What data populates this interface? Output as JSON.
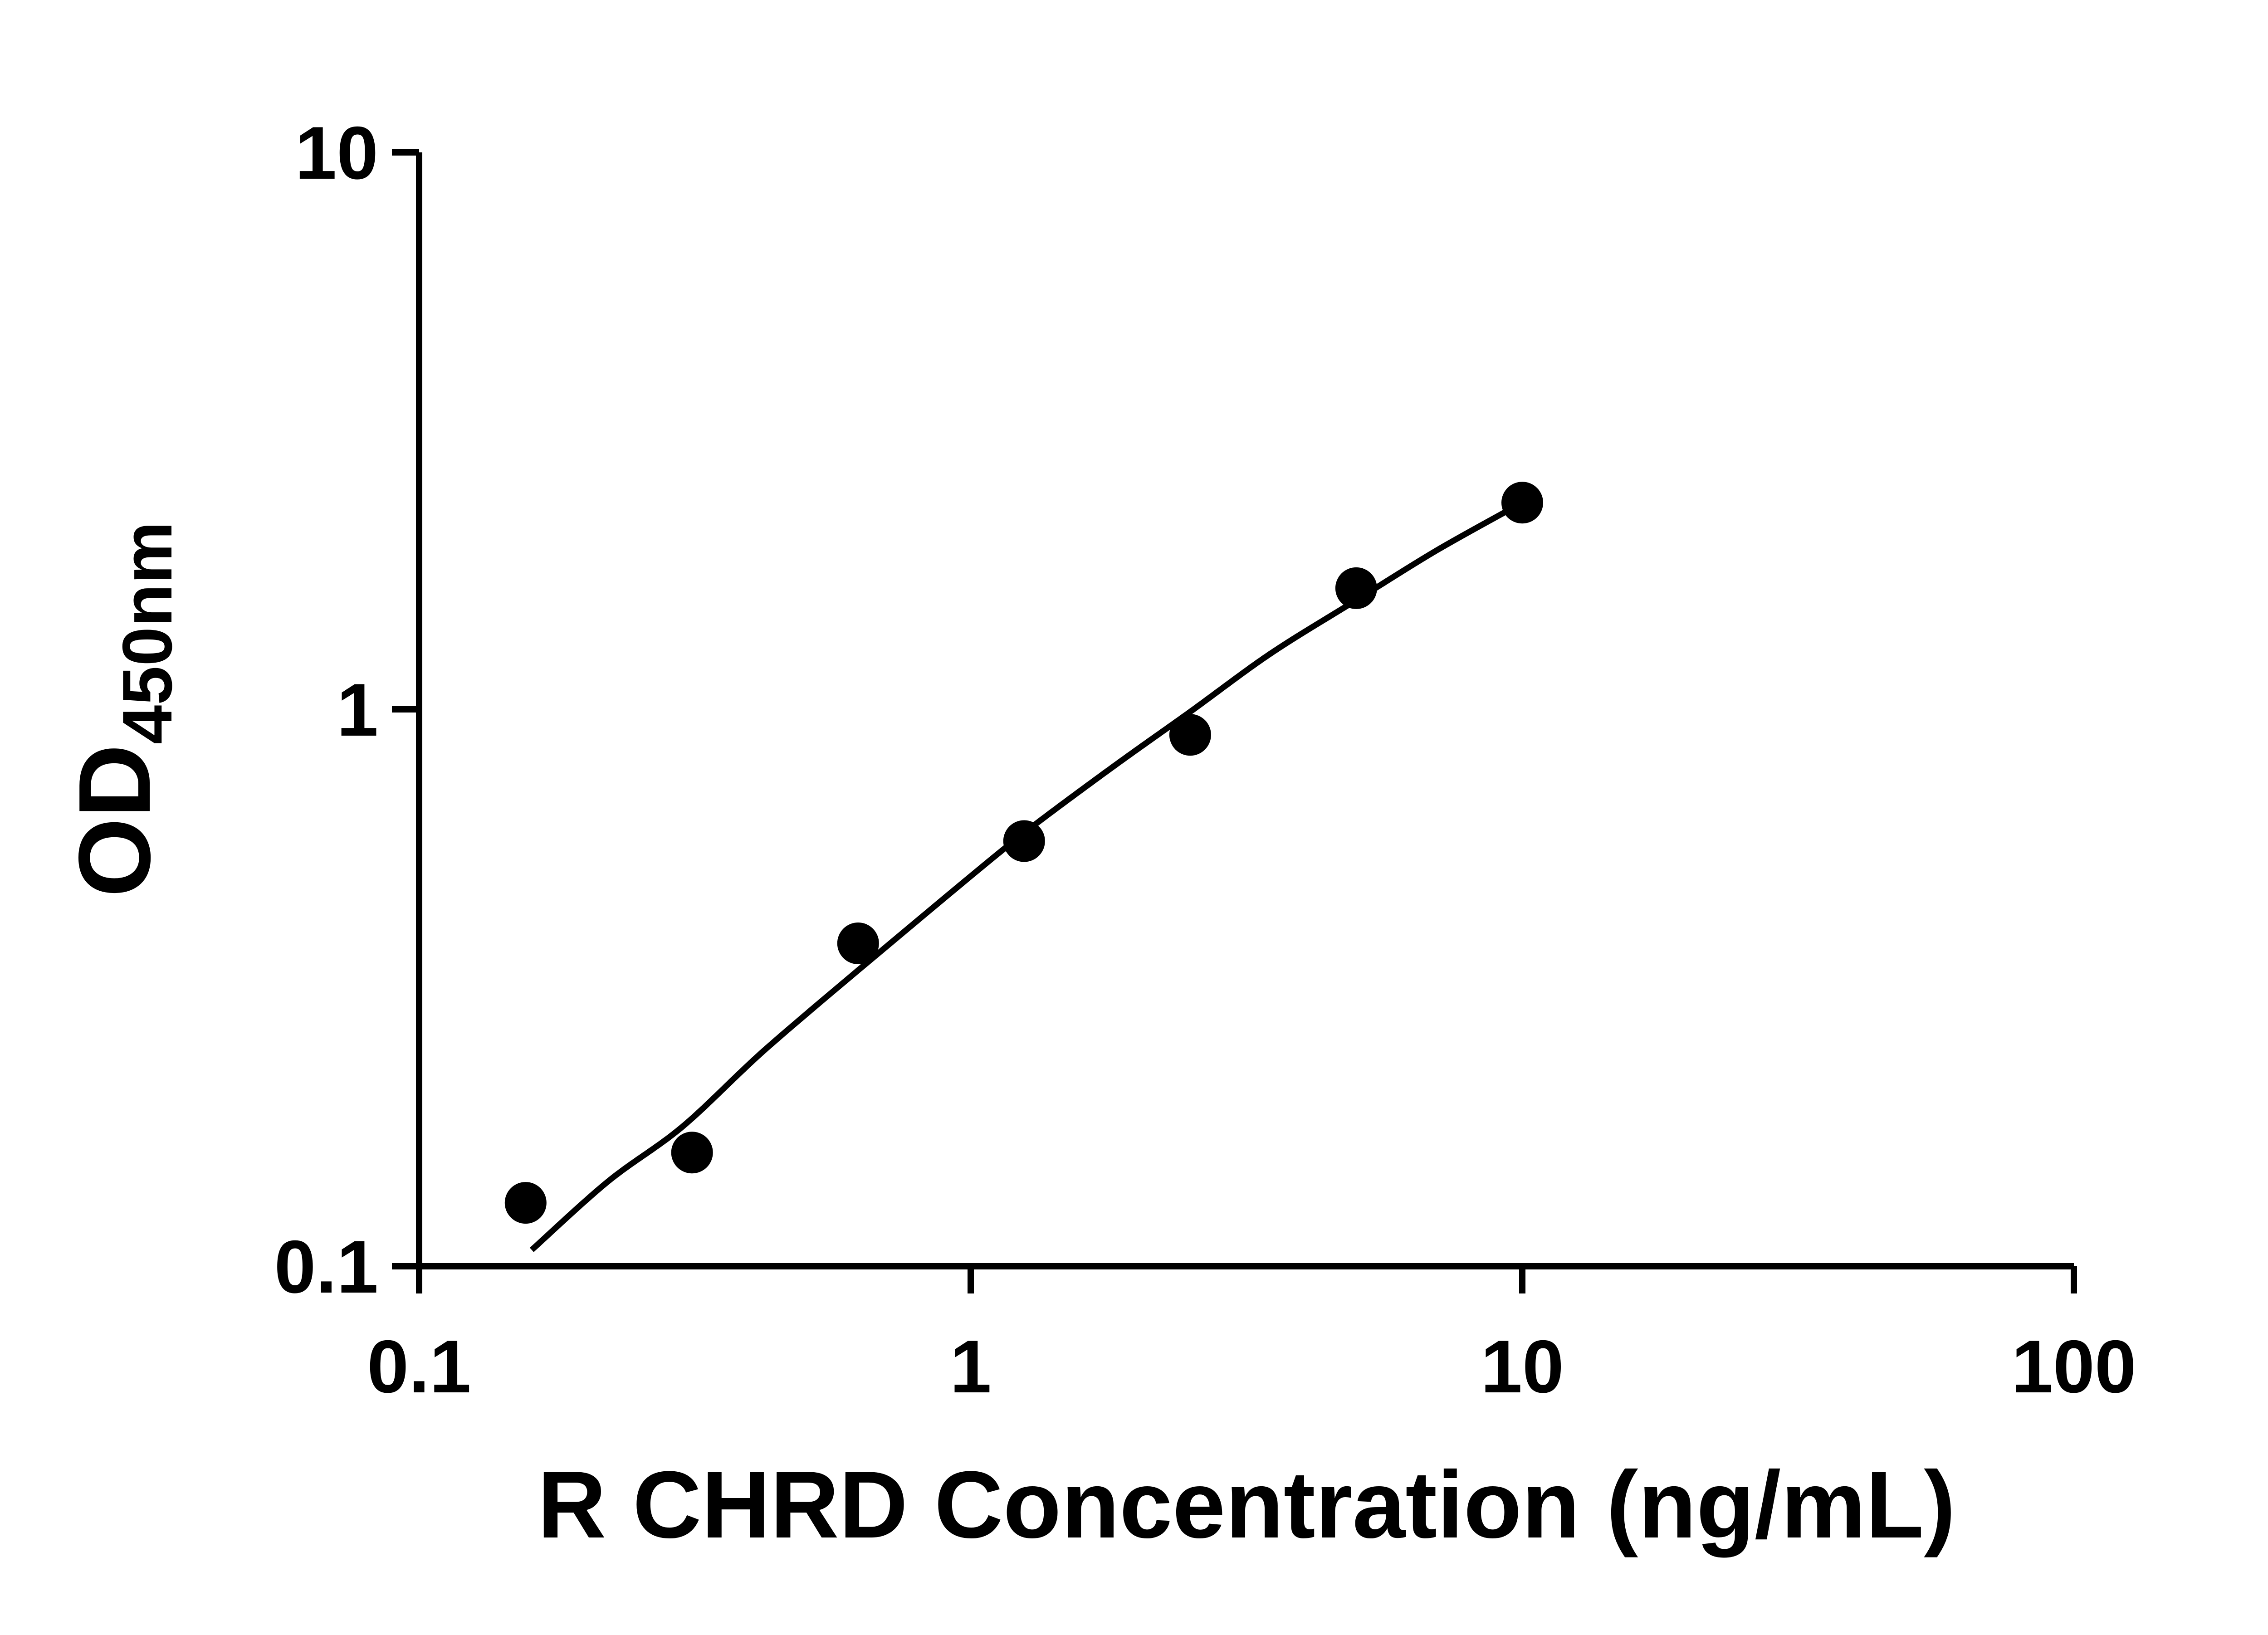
{
  "figure": {
    "background": "#ffffff"
  },
  "chart_data": {
    "type": "scatter",
    "title": "",
    "xlabel": "R CHRD Concentration (ng/mL)",
    "ylabel": "OD",
    "ylabel_subscript": "450nm",
    "x_scale": "log10",
    "y_scale": "log10",
    "xlim": [
      0.1,
      100
    ],
    "ylim": [
      0.1,
      10
    ],
    "x_ticks": [
      0.1,
      1,
      10,
      100
    ],
    "x_tick_labels": [
      "0.1",
      "1",
      "10",
      "100"
    ],
    "y_ticks": [
      0.1,
      1,
      10
    ],
    "y_tick_labels": [
      "0.1",
      "1",
      "10"
    ],
    "grid": false,
    "legend": "none",
    "points": [
      {
        "x": 0.156,
        "y": 0.13
      },
      {
        "x": 0.3125,
        "y": 0.16
      },
      {
        "x": 0.625,
        "y": 0.38
      },
      {
        "x": 1.25,
        "y": 0.58
      },
      {
        "x": 2.5,
        "y": 0.9
      },
      {
        "x": 5,
        "y": 1.65
      },
      {
        "x": 10,
        "y": 2.35
      }
    ],
    "fit_curve": [
      {
        "x": 0.16,
        "y": 0.107
      },
      {
        "x": 0.22,
        "y": 0.142
      },
      {
        "x": 0.3,
        "y": 0.178
      },
      {
        "x": 0.42,
        "y": 0.243
      },
      {
        "x": 0.625,
        "y": 0.34
      },
      {
        "x": 0.9,
        "y": 0.46
      },
      {
        "x": 1.25,
        "y": 0.6
      },
      {
        "x": 1.8,
        "y": 0.785
      },
      {
        "x": 2.5,
        "y": 0.99
      },
      {
        "x": 3.5,
        "y": 1.26
      },
      {
        "x": 5.0,
        "y": 1.57
      },
      {
        "x": 7.0,
        "y": 1.93
      },
      {
        "x": 10.0,
        "y": 2.35
      }
    ],
    "colors": {
      "axis": "#000000",
      "text": "#000000",
      "marker": "#000000",
      "line": "#000000"
    }
  }
}
